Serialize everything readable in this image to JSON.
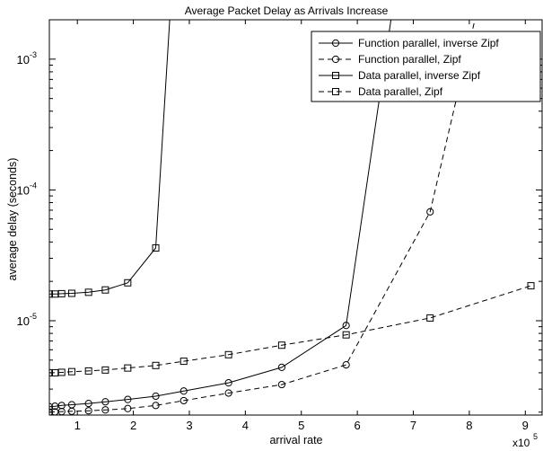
{
  "chart_data": {
    "type": "line",
    "title": "Average Packet Delay as Arrivals Increase",
    "xlabel": "arrival rate",
    "ylabel": "average delay (seconds)",
    "x_multiplier": "x10",
    "x_multiplier_exp": "5",
    "xlim": [
      0.5,
      9.3
    ],
    "ylim": [
      1.9e-06,
      0.002
    ],
    "yscale": "log",
    "x_ticks": [
      1,
      2,
      3,
      4,
      5,
      6,
      7,
      8,
      9
    ],
    "x_tick_labels": [
      "1",
      "2",
      "3",
      "4",
      "5",
      "6",
      "7",
      "8",
      "9"
    ],
    "y_ticks": [
      1e-05,
      0.0001,
      0.001
    ],
    "y_tick_labels": [
      {
        "base": "10",
        "exp": "-5"
      },
      {
        "base": "10",
        "exp": "-4"
      },
      {
        "base": "10",
        "exp": "-3"
      }
    ],
    "legend_position": "top-right",
    "series": [
      {
        "name": "Function parallel, inverse Zipf",
        "line": "solid",
        "marker": "circle",
        "x": [
          0.5,
          0.6,
          0.72,
          0.9,
          1.2,
          1.5,
          1.9,
          2.4,
          2.9,
          3.7,
          4.65,
          5.8,
          6.6
        ],
        "y": [
          2.2e-06,
          2.22e-06,
          2.25e-06,
          2.28e-06,
          2.33e-06,
          2.4e-06,
          2.5e-06,
          2.65e-06,
          2.9e-06,
          3.35e-06,
          4.4e-06,
          9.2e-06,
          0.002
        ]
      },
      {
        "name": "Function parallel, Zipf",
        "line": "dashed",
        "marker": "circle",
        "x": [
          0.5,
          0.6,
          0.72,
          0.9,
          1.2,
          1.5,
          1.9,
          2.4,
          2.9,
          3.7,
          4.65,
          5.8,
          7.3,
          8.1
        ],
        "y": [
          2e-06,
          2.01e-06,
          2.02e-06,
          2.03e-06,
          2.05e-06,
          2.08e-06,
          2.13e-06,
          2.25e-06,
          2.45e-06,
          2.8e-06,
          3.25e-06,
          4.6e-06,
          6.8e-05,
          0.002
        ]
      },
      {
        "name": "Data parallel, inverse Zipf",
        "line": "solid",
        "marker": "square",
        "x": [
          0.5,
          0.6,
          0.72,
          0.9,
          1.2,
          1.5,
          1.9,
          2.4,
          2.65
        ],
        "y": [
          1.6e-05,
          1.6e-05,
          1.61e-05,
          1.62e-05,
          1.65e-05,
          1.72e-05,
          1.95e-05,
          3.6e-05,
          0.002
        ]
      },
      {
        "name": "Data parallel, Zipf",
        "line": "dashed",
        "marker": "square",
        "x": [
          0.5,
          0.6,
          0.72,
          0.9,
          1.2,
          1.5,
          1.9,
          2.4,
          2.9,
          3.7,
          4.65,
          5.8,
          7.3,
          9.1
        ],
        "y": [
          4e-06,
          4e-06,
          4.03e-06,
          4.08e-06,
          4.13e-06,
          4.2e-06,
          4.35e-06,
          4.55e-06,
          4.9e-06,
          5.5e-06,
          6.5e-06,
          7.8e-06,
          1.05e-05,
          1.85e-05
        ]
      }
    ]
  }
}
